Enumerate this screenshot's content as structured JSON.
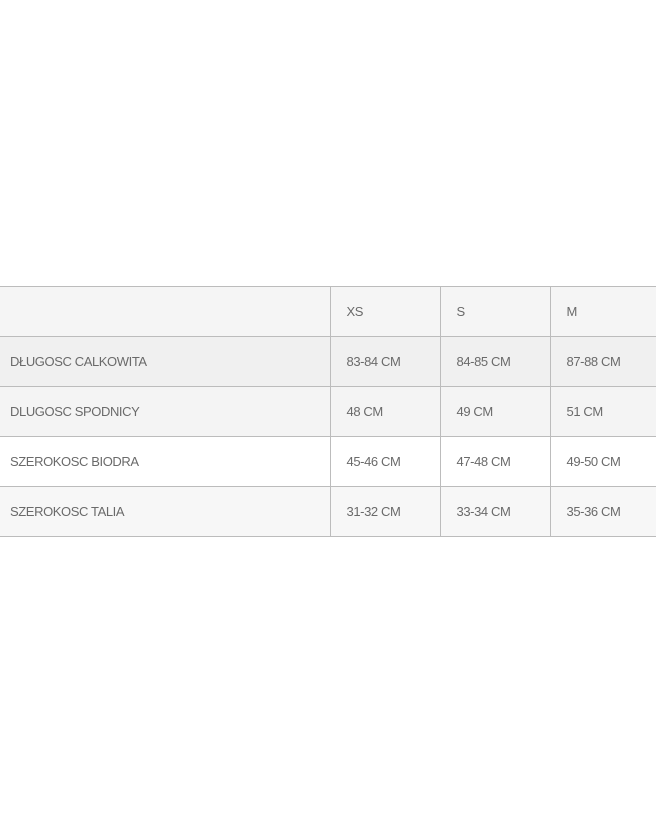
{
  "table": {
    "headers": [
      "",
      "XS",
      "S",
      "M"
    ],
    "rows": [
      {
        "label": "DŁUGOSC CALKOWITA",
        "values": [
          "83-84 CM",
          "84-85 CM",
          "87-88 CM"
        ]
      },
      {
        "label": "DLUGOSC SPODNICY",
        "values": [
          "48 CM",
          "49 CM",
          "51 CM"
        ]
      },
      {
        "label": "SZEROKOSC BIODRA",
        "values": [
          "45-46 CM",
          "47-48 CM",
          "49-50 CM"
        ]
      },
      {
        "label": "SZEROKOSC TALIA",
        "values": [
          "31-32 CM",
          "33-34 CM",
          "35-36 CM"
        ]
      }
    ]
  }
}
